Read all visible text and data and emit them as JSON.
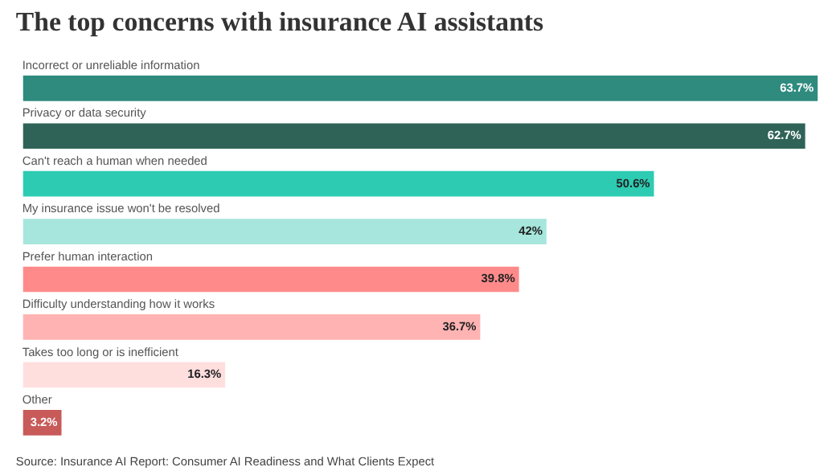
{
  "chart_data": {
    "type": "bar",
    "orientation": "horizontal",
    "title": "The top concerns with insurance AI assistants",
    "categories": [
      "Incorrect or unreliable information",
      "Privacy or data security",
      "Can't reach a human when needed",
      "My insurance issue won't be resolved",
      "Prefer human interaction",
      "Difficulty understanding how it works",
      "Takes too long or is inefficient",
      "Other"
    ],
    "values": [
      63.7,
      62.7,
      50.6,
      42,
      39.8,
      36.7,
      16.3,
      3.2
    ],
    "value_labels": [
      "63.7%",
      "62.7%",
      "50.6%",
      "42%",
      "39.8%",
      "36.7%",
      "16.3%",
      "3.2%"
    ],
    "colors": [
      "#2e8b7e",
      "#2f6358",
      "#2ecbb3",
      "#a6e6dc",
      "#ff8a8a",
      "#ffb3b3",
      "#ffdede",
      "#c85a5a"
    ],
    "tick_labels": false,
    "annotations": [
      "Source: Insurance AI Report: Consumer AI Readiness and What Clients Expect"
    ]
  }
}
